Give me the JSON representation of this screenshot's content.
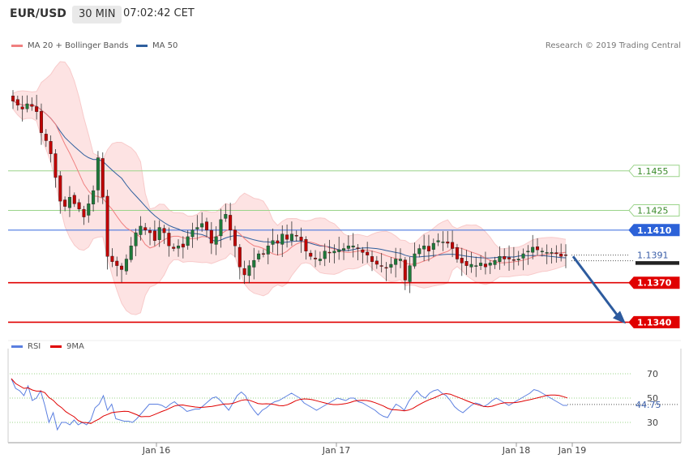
{
  "header": {
    "symbol": "EUR/USD",
    "timeframe": "30 MIN",
    "time": "07:02:42 CET"
  },
  "legend": {
    "ma20_label": "MA 20 + Bollinger Bands",
    "ma50_label": "MA 50",
    "ma20_color": "#f08080",
    "ma50_color": "#2f5f9e"
  },
  "credit": "Research © 2019 Trading Central",
  "rsi_legend": {
    "rsi_label": "RSI",
    "ma_label": "9MA",
    "rsi_color": "#5b7fe0",
    "ma_color": "#e00000"
  },
  "chart_data": [
    {
      "type": "candlestick",
      "title": "EUR/USD",
      "ylim": [
        1.1331,
        1.1543
      ],
      "x_ticks": [
        "Jan 16",
        "Jan 17",
        "Jan 18",
        "Jan 19"
      ],
      "price_levels": [
        {
          "value": 1.1455,
          "label": "1.1455",
          "style": "resistance-green"
        },
        {
          "value": 1.1425,
          "label": "1.1425",
          "style": "resistance-green"
        },
        {
          "value": 1.141,
          "label": "1.1410",
          "style": "resistance-blue"
        },
        {
          "value": 1.1391,
          "label": "1.1391",
          "style": "current-price"
        },
        {
          "value": 1.137,
          "label": "1.1370",
          "style": "support-red"
        },
        {
          "value": 1.134,
          "label": "1.1340",
          "style": "support-red"
        }
      ],
      "forecast_arrow": {
        "from": 1.139,
        "to": 1.134
      },
      "close_path": [
        1.1508,
        1.1505,
        1.1502,
        1.1506,
        1.1504,
        1.15,
        1.1484,
        1.1478,
        1.1468,
        1.145,
        1.1432,
        1.1428,
        1.1435,
        1.143,
        1.1426,
        1.142,
        1.143,
        1.144,
        1.1465,
        1.1435,
        1.139,
        1.1386,
        1.1383,
        1.138,
        1.1388,
        1.1398,
        1.1408,
        1.1413,
        1.141,
        1.1408,
        1.1402,
        1.1412,
        1.1408,
        1.1398,
        1.1396,
        1.1398,
        1.1397,
        1.1405,
        1.141,
        1.1412,
        1.1415,
        1.141,
        1.14,
        1.1405,
        1.1418,
        1.1422,
        1.141,
        1.1398,
        1.1382,
        1.1376,
        1.1383,
        1.1387,
        1.1392,
        1.1392,
        1.1398,
        1.1402,
        1.14,
        1.1407,
        1.1403,
        1.1407,
        1.1406,
        1.1402,
        1.1394,
        1.139,
        1.1388,
        1.1388,
        1.1394,
        1.1393,
        1.1394,
        1.1395,
        1.1396,
        1.1398,
        1.1398,
        1.1396,
        1.1393,
        1.1391,
        1.1386,
        1.1384,
        1.1383,
        1.1381,
        1.1384,
        1.1388,
        1.1388,
        1.1372,
        1.1383,
        1.1392,
        1.1396,
        1.1398,
        1.1394,
        1.14,
        1.1402,
        1.1401,
        1.14,
        1.1396,
        1.1388,
        1.1385,
        1.1383,
        1.1384,
        1.1383,
        1.1385,
        1.1382,
        1.1385,
        1.1387,
        1.139,
        1.1388,
        1.1388,
        1.1387,
        1.1388,
        1.1392,
        1.1394,
        1.1397,
        1.1395,
        1.1394,
        1.1393,
        1.1393,
        1.1392,
        1.139,
        1.1391
      ],
      "rsi": {
        "ylim": [
          20,
          80
        ],
        "y_ticks": [
          70,
          50,
          30
        ],
        "current_value": 44.75,
        "current_label": "44.75",
        "values": [
          66,
          58,
          56,
          52,
          60,
          48,
          50,
          56,
          44,
          30,
          38,
          24,
          30,
          30,
          28,
          32,
          28,
          30,
          28,
          32,
          42,
          45,
          52,
          40,
          45,
          33,
          32,
          31,
          31,
          30,
          33,
          37,
          41,
          45,
          45,
          45,
          44,
          42,
          45,
          47,
          44,
          42,
          39,
          40,
          41,
          41,
          44,
          47,
          50,
          51,
          48,
          44,
          40,
          46,
          52,
          55,
          52,
          45,
          40,
          36,
          40,
          42,
          45,
          47,
          48,
          50,
          52,
          54,
          52,
          50,
          46,
          44,
          42,
          40,
          42,
          44,
          46,
          48,
          50,
          49,
          48,
          50,
          50,
          47,
          46,
          44,
          42,
          40,
          37,
          35,
          34,
          40,
          45,
          43,
          40,
          47,
          52,
          56,
          52,
          50,
          54,
          56,
          57,
          54,
          52,
          48,
          43,
          40,
          38,
          41,
          44,
          46,
          45,
          43,
          45,
          48,
          50,
          48,
          46,
          44,
          46,
          48,
          50,
          52,
          54,
          57,
          56,
          54,
          52,
          50,
          48,
          46,
          44,
          44
        ]
      }
    }
  ]
}
